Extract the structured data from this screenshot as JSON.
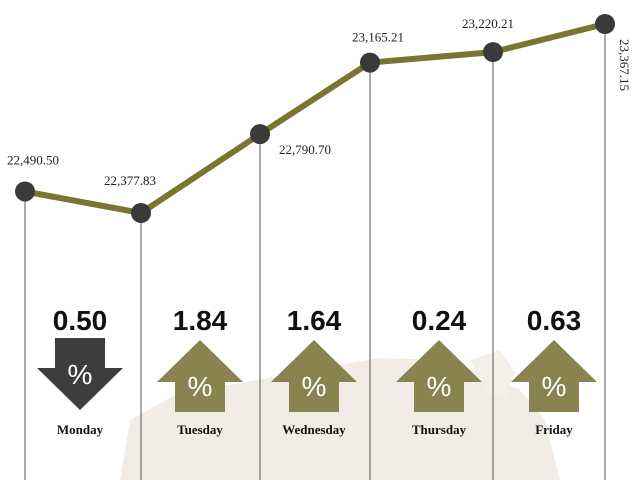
{
  "chart_data": {
    "type": "line",
    "title": "",
    "xlabel": "",
    "ylabel": "",
    "ylim": [
      22200,
      23400
    ],
    "grid": false,
    "legend": "none",
    "points": [
      {
        "value": 22490.5,
        "label": "22,490.50"
      },
      {
        "value": 22377.83,
        "label": "22,377.83"
      },
      {
        "value": 22790.7,
        "label": "22,790.70"
      },
      {
        "value": 23165.21,
        "label": "23,165.21"
      },
      {
        "value": 23220.21,
        "label": "23,220.21"
      },
      {
        "value": 23367.15,
        "label": "23,367.15"
      }
    ],
    "daily_changes": [
      {
        "day": "Monday",
        "change": "0.50",
        "direction": "down"
      },
      {
        "day": "Tuesday",
        "change": "1.84",
        "direction": "up"
      },
      {
        "day": "Wednesday",
        "change": "1.64",
        "direction": "up"
      },
      {
        "day": "Thursday",
        "change": "0.24",
        "direction": "up"
      },
      {
        "day": "Friday",
        "change": "0.63",
        "direction": "up"
      }
    ],
    "percent_symbol": "%",
    "colors": {
      "line": "#7a7530",
      "marker": "#3a3a3a",
      "up_arrow": "#8a8350",
      "down_arrow": "#3d3d3d",
      "stem": "#555555",
      "map": "#f0ece4"
    }
  }
}
